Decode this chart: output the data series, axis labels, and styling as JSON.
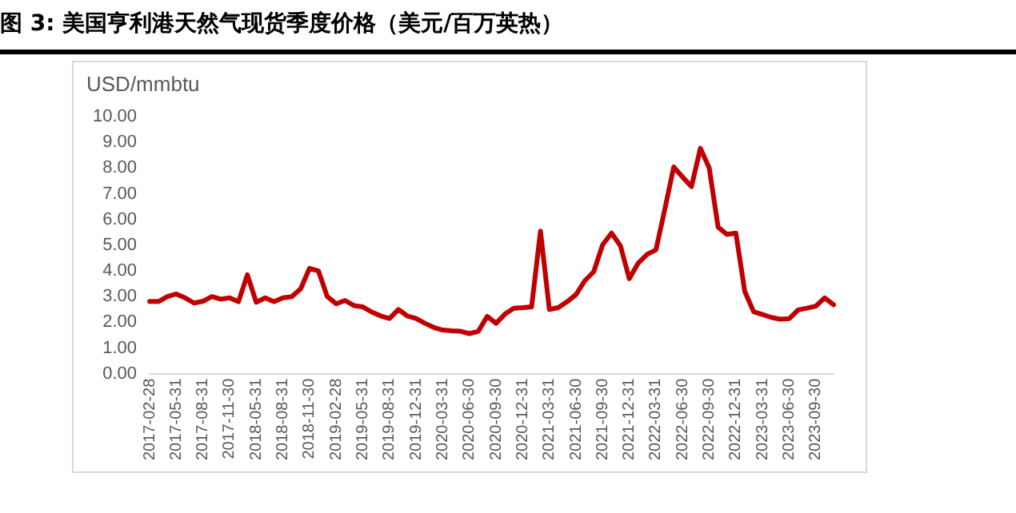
{
  "chart_data": {
    "type": "line",
    "title": "图 3: 美国亨利港天然气现货季度价格（美元/百万英热）",
    "ylabel": "USD/mmbtu",
    "categories": [
      "2017-02-28",
      null,
      null,
      "2017-05-31",
      null,
      null,
      "2017-08-31",
      null,
      null,
      "2017-11-30",
      null,
      null,
      "2018-05-31",
      null,
      null,
      "2018-08-31",
      null,
      null,
      "2018-11-30",
      null,
      null,
      "2019-02-28",
      null,
      null,
      "2019-05-31",
      null,
      null,
      "2019-08-31",
      null,
      null,
      "2019-12-31",
      null,
      null,
      "2020-03-31",
      null,
      null,
      "2020-06-30",
      null,
      null,
      "2020-09-30",
      null,
      null,
      "2020-12-31",
      null,
      null,
      "2021-03-31",
      null,
      null,
      "2021-06-30",
      null,
      null,
      "2021-09-30",
      null,
      null,
      "2021-12-31",
      null,
      null,
      "2022-03-31",
      null,
      null,
      "2022-06-30",
      null,
      null,
      "2022-09-30",
      null,
      null,
      "2022-12-31",
      null,
      null,
      "2023-03-31",
      null,
      null,
      "2023-06-30",
      null,
      null,
      "2023-09-30",
      null,
      null
    ],
    "series": [
      {
        "color": "#c00000",
        "values": [
          2.81,
          2.81,
          3.0,
          3.1,
          2.95,
          2.75,
          2.82,
          3.0,
          2.9,
          2.95,
          2.8,
          3.85,
          2.78,
          2.95,
          2.8,
          2.95,
          3.0,
          3.3,
          4.1,
          4.0,
          3.0,
          2.72,
          2.85,
          2.65,
          2.6,
          2.4,
          2.25,
          2.15,
          2.5,
          2.25,
          2.15,
          1.96,
          1.8,
          1.7,
          1.67,
          1.65,
          1.56,
          1.65,
          2.23,
          1.96,
          2.32,
          2.55,
          2.57,
          2.6,
          5.55,
          2.5,
          2.57,
          2.8,
          3.08,
          3.62,
          3.97,
          5.02,
          5.47,
          4.98,
          3.7,
          4.3,
          4.64,
          4.82,
          6.4,
          8.04,
          7.65,
          7.28,
          8.77,
          8.0,
          5.7,
          5.42,
          5.47,
          3.2,
          2.41,
          2.3,
          2.19,
          2.12,
          2.14,
          2.48,
          2.55,
          2.63,
          2.95,
          2.68
        ]
      }
    ],
    "ylim": [
      0,
      10
    ],
    "yticks": [
      {
        "value": 0,
        "label": "0.00"
      },
      {
        "value": 1,
        "label": "1.00"
      },
      {
        "value": 2,
        "label": "2.00"
      },
      {
        "value": 3,
        "label": "3.00"
      },
      {
        "value": 4,
        "label": "4.00"
      },
      {
        "value": 5,
        "label": "5.00"
      },
      {
        "value": 6,
        "label": "6.00"
      },
      {
        "value": 7,
        "label": "7.00"
      },
      {
        "value": 8,
        "label": "8.00"
      },
      {
        "value": 9,
        "label": "9.00"
      },
      {
        "value": 10,
        "label": "10.00"
      }
    ],
    "grid": false,
    "legend": false,
    "marker": "none",
    "line_style": "solid"
  }
}
